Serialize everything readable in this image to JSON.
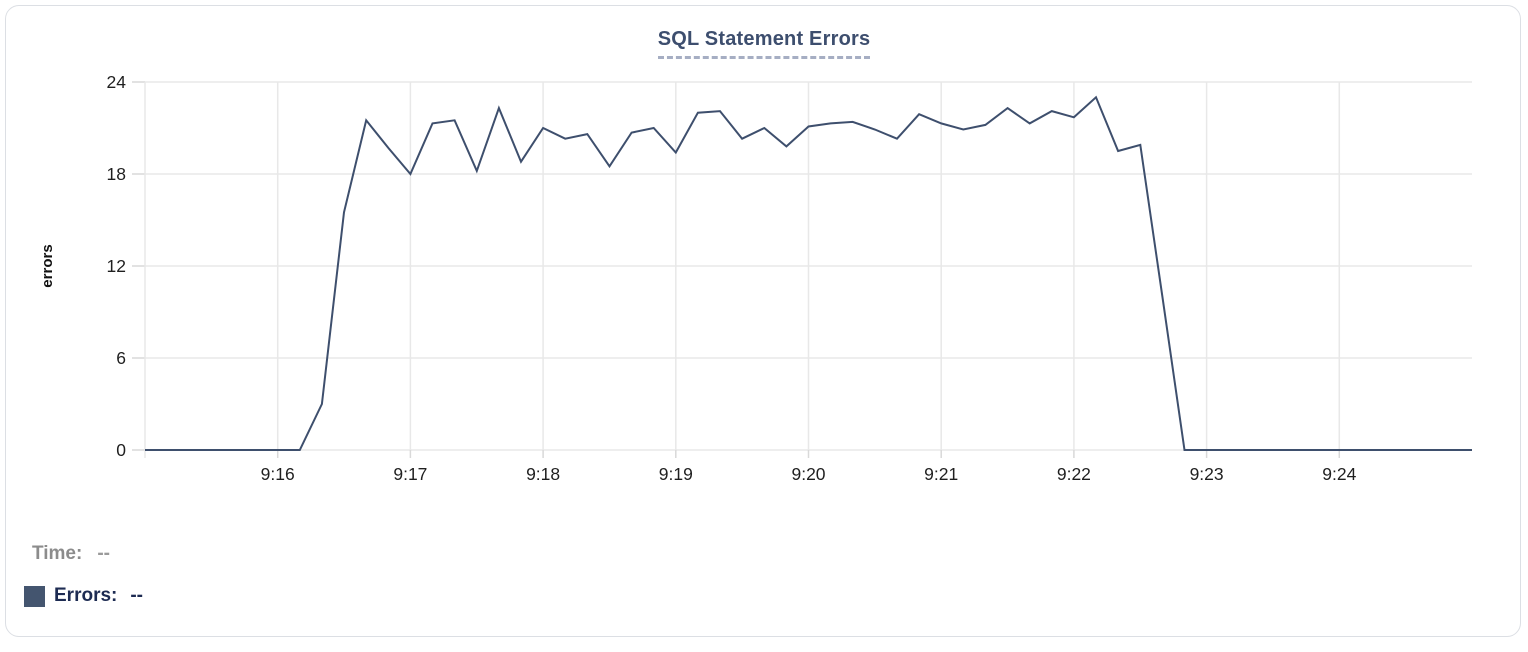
{
  "title": {
    "text": "SQL Statement Errors"
  },
  "tooltip": {
    "time_label": "Time:",
    "time_value": "--",
    "errors_label": "Errors:",
    "errors_value": "--"
  },
  "colors": {
    "line": "#3e4f6d",
    "swatch": "#44556f",
    "title": "#3d4e6e",
    "grid": "#e8e8e8",
    "tick": "#d9d9d9",
    "axis_text": "#1f1f1f"
  },
  "chart_data": {
    "type": "line",
    "title": "SQL Statement Errors",
    "xlabel": "",
    "ylabel": "errors",
    "ylim": [
      0,
      24
    ],
    "y_ticks": [
      0,
      6,
      12,
      18,
      24
    ],
    "x_range": [
      "9:15:00",
      "9:25:00"
    ],
    "x_tick_labels": [
      "9:16",
      "9:17",
      "9:18",
      "9:19",
      "9:20",
      "9:21",
      "9:22",
      "9:23",
      "9:24"
    ],
    "grid": true,
    "legend_position": "bottom-left",
    "series": [
      {
        "name": "Errors",
        "x": [
          "9:15:00",
          "9:15:10",
          "9:15:20",
          "9:15:30",
          "9:15:40",
          "9:15:50",
          "9:16:00",
          "9:16:10",
          "9:16:20",
          "9:16:30",
          "9:16:40",
          "9:16:50",
          "9:17:00",
          "9:17:10",
          "9:17:20",
          "9:17:30",
          "9:17:40",
          "9:17:50",
          "9:18:00",
          "9:18:10",
          "9:18:20",
          "9:18:30",
          "9:18:40",
          "9:18:50",
          "9:19:00",
          "9:19:10",
          "9:19:20",
          "9:19:30",
          "9:19:40",
          "9:19:50",
          "9:20:00",
          "9:20:10",
          "9:20:20",
          "9:20:30",
          "9:20:40",
          "9:20:50",
          "9:21:00",
          "9:21:10",
          "9:21:20",
          "9:21:30",
          "9:21:40",
          "9:21:50",
          "9:22:00",
          "9:22:10",
          "9:22:20",
          "9:22:30",
          "9:22:40",
          "9:22:50",
          "9:23:00",
          "9:23:10",
          "9:23:20",
          "9:23:30",
          "9:23:40",
          "9:23:50",
          "9:24:00",
          "9:24:10",
          "9:24:20",
          "9:24:30",
          "9:24:40",
          "9:24:50",
          "9:25:00"
        ],
        "values": [
          0,
          0,
          0,
          0,
          0,
          0,
          0,
          0,
          3,
          15.5,
          21.5,
          19.7,
          18,
          21.3,
          21.5,
          18.2,
          22.3,
          18.8,
          21,
          20.3,
          20.6,
          18.5,
          20.7,
          21,
          19.4,
          22,
          22.1,
          20.3,
          21,
          19.8,
          21.1,
          21.3,
          21.4,
          20.9,
          20.3,
          21.9,
          21.3,
          20.9,
          21.2,
          22.3,
          21.3,
          22.1,
          21.7,
          23,
          19.5,
          19.9,
          10,
          0,
          0,
          0,
          0,
          0,
          0,
          0,
          0,
          0,
          0,
          0,
          0,
          0,
          0
        ]
      }
    ]
  }
}
